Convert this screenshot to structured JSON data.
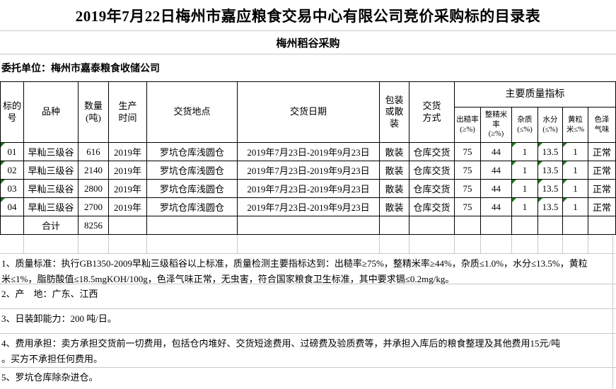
{
  "page": {
    "title": "2019年7月22日梅州市嘉应粮食交易中心有限公司竞价采购标的目录表",
    "subtitle": "梅州稻谷采购",
    "client_line": "委托单位：梅州市嘉泰粮食收储公司"
  },
  "table": {
    "main_headers": [
      "标的\n号",
      "品种",
      "数量\n(吨)",
      "生产\n时间",
      "交货地点",
      "交货日期",
      "包装\n或散\n装",
      "交货\n方式"
    ],
    "quality_group_header": "主要质量指标",
    "quality_headers": [
      "出糙率\n(≥%)",
      "整精米\n率\n(≥%)",
      "杂质\n(≤%)",
      "水分\n(≤%)",
      "黄粒\n米≤%",
      "色泽\n气味"
    ],
    "rows": [
      {
        "cells": [
          "01",
          "早籼三级谷",
          "616",
          "2019年",
          "罗坑仓库浅圆仓",
          "2019年7月23日-2019年9月23日",
          "散装",
          "仓库交货",
          "75",
          "44",
          "1",
          "13.5",
          "1",
          "正常"
        ],
        "error_flags": [
          1,
          0,
          0,
          0,
          0,
          0,
          0,
          0,
          0,
          0,
          1,
          1,
          1,
          0
        ]
      },
      {
        "cells": [
          "02",
          "早籼三级谷",
          "2140",
          "2019年",
          "罗坑仓库浅圆仓",
          "2019年7月23日-2019年9月23日",
          "散装",
          "仓库交货",
          "75",
          "44",
          "1",
          "13.5",
          "1",
          "正常"
        ],
        "error_flags": [
          1,
          0,
          0,
          0,
          0,
          0,
          0,
          0,
          0,
          0,
          1,
          1,
          1,
          0
        ]
      },
      {
        "cells": [
          "03",
          "早籼三级谷",
          "2800",
          "2019年",
          "罗坑仓库浅圆仓",
          "2019年7月23日-2019年9月23日",
          "散装",
          "仓库交货",
          "75",
          "44",
          "1",
          "13.5",
          "1",
          "正常"
        ],
        "error_flags": [
          1,
          0,
          0,
          0,
          0,
          0,
          0,
          0,
          0,
          0,
          1,
          1,
          1,
          0
        ]
      },
      {
        "cells": [
          "04",
          "早籼三级谷",
          "2700",
          "2019年",
          "罗坑仓库浅圆仓",
          "2019年7月23日-2019年9月23日",
          "散装",
          "仓库交货",
          "75",
          "44",
          "1",
          "13.5",
          "1",
          "正常"
        ],
        "error_flags": [
          1,
          0,
          0,
          0,
          0,
          0,
          0,
          0,
          0,
          0,
          1,
          1,
          1,
          0
        ]
      }
    ],
    "total_label": "合计",
    "total_quantity": "8256"
  },
  "notes": [
    "1、质量标准：执行GB1350-2009早籼三级稻谷以上标准，质量检测主要指标达到：出糙率≥75%，整精米率≥44%，杂质≤1.0%，水分≤13.5%，黄粒\n米≤1%，脂肪酸值≤18.5mgKOH/100g，色泽气味正常，无虫害，符合国家粮食卫生标准，其中要求镉≤0.2mg/kg。",
    "2、产　地：广东、江西",
    "3、日装卸能力：200 吨/日。",
    "4、费用承担：卖方承担交货前一切费用，包括仓内堆好、交货短途费用、过磅费及验质费等，并承担入库后的粮食整理及其他费用15元/吨\n。买方不承担任何费用。",
    "5、罗坑仓库除杂进仓。"
  ],
  "colors": {
    "error_indicator_green": "#1e7a1e",
    "grid_line": "#c9c9c9",
    "table_border": "#000000",
    "text": "#000000",
    "background": "#ffffff"
  }
}
